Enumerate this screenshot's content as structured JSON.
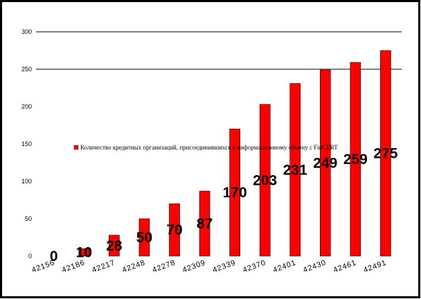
{
  "chart_data": {
    "type": "bar",
    "categories": [
      "42156",
      "42186",
      "42217",
      "42248",
      "42278",
      "42309",
      "42339",
      "42370",
      "42401",
      "42430",
      "42461",
      "42491"
    ],
    "series": [
      {
        "name": "Количество кредитных организаций, присоединившихся к информационному обмену с FinCERT",
        "values": [
          0,
          10,
          28,
          50,
          70,
          87,
          170,
          203,
          231,
          249,
          259,
          275
        ],
        "color": "#ff0000"
      }
    ],
    "ylim": [
      0,
      300
    ],
    "yticks": [
      300,
      250,
      200,
      150,
      100,
      50,
      0
    ],
    "gridlines": [
      250,
      300
    ],
    "legend_position": "center-left",
    "data_label_position": "center"
  }
}
